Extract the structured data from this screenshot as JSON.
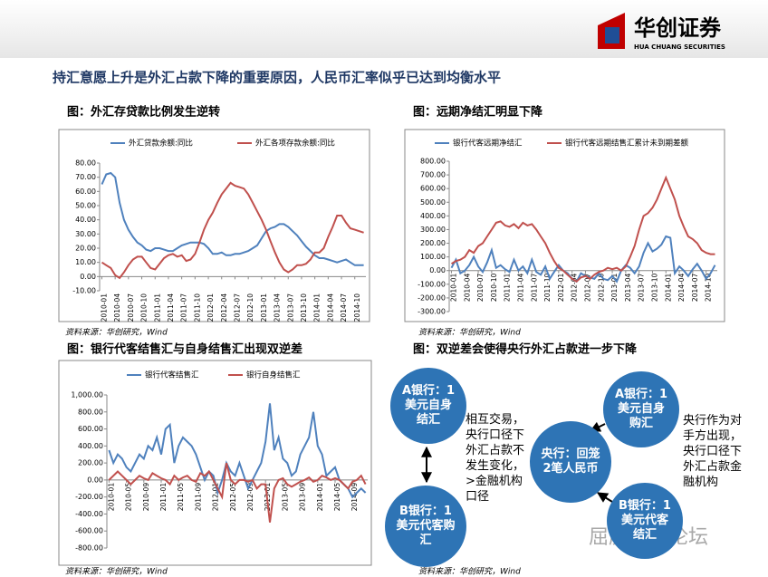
{
  "header": {
    "logo": "华创证券",
    "logo_sub": "HUA CHUANG SECURITIES",
    "headline": "持汇意愿上升是外汇占款下降的重要原因，人民币汇率似乎已达到均衡水平"
  },
  "chart_data": [
    {
      "type": "line",
      "title": "图：外汇存贷款比例发生逆转",
      "source": "资料来源：华创研究，Wind",
      "legend": "top",
      "grid": false,
      "categories": [
        "2010-01",
        null,
        null,
        "2010-04",
        null,
        null,
        "2010-07",
        null,
        null,
        "2010-10",
        null,
        null,
        "2011-01",
        null,
        null,
        "2011-04",
        null,
        null,
        "2011-07",
        null,
        null,
        "2011-10",
        null,
        null,
        "2012-01",
        null,
        null,
        "2012-04",
        null,
        null,
        "2012-07",
        null,
        null,
        "2012-10",
        null,
        null,
        "2013-01",
        null,
        null,
        "2013-04",
        null,
        null,
        "2013-07",
        null,
        null,
        "2013-10",
        null,
        null,
        "2014-01",
        null,
        null,
        "2014-04",
        null,
        null,
        "2014-07",
        null,
        null,
        "2014-10",
        null,
        null
      ],
      "series": [
        {
          "name": "外汇贷款余额:同比",
          "color": "#4f81bd",
          "values": [
            65,
            72,
            73,
            70,
            52,
            40,
            33,
            28,
            24,
            22,
            19,
            18,
            20,
            20,
            19,
            18,
            18,
            20,
            22,
            23,
            24,
            24,
            24,
            23,
            20,
            16,
            16,
            17,
            15,
            15,
            16,
            16,
            17,
            18,
            20,
            22,
            27,
            32,
            34,
            35,
            37,
            37,
            35,
            32,
            29,
            25,
            21,
            18,
            15,
            13,
            13,
            12,
            11,
            10,
            11,
            12,
            10,
            8,
            8,
            8
          ]
        },
        {
          "name": "外汇各项存款余额:同比",
          "color": "#c0504d",
          "values": [
            10,
            8,
            6,
            1,
            -1,
            3,
            8,
            12,
            14,
            14,
            10,
            6,
            5,
            9,
            13,
            15,
            16,
            14,
            15,
            11,
            12,
            16,
            24,
            33,
            40,
            45,
            52,
            58,
            62,
            66,
            64,
            63,
            62,
            58,
            52,
            46,
            40,
            33,
            25,
            17,
            10,
            5,
            3,
            5,
            8,
            8,
            9,
            12,
            17,
            17,
            20,
            28,
            35,
            43,
            43,
            38,
            34,
            33,
            32,
            31
          ]
        }
      ],
      "ylim": [
        -10,
        80
      ],
      "yticks": [
        {
          "value": -10,
          "label": "-10.00"
        },
        {
          "value": 0,
          "label": "0.00"
        },
        {
          "value": 10,
          "label": "10.00"
        },
        {
          "value": 20,
          "label": "20.00"
        },
        {
          "value": 30,
          "label": "30.00"
        },
        {
          "value": 40,
          "label": "40.00"
        },
        {
          "value": 50,
          "label": "50.00"
        },
        {
          "value": 60,
          "label": "60.00"
        },
        {
          "value": 70,
          "label": "70.00"
        },
        {
          "value": 80,
          "label": "80.00"
        }
      ]
    },
    {
      "type": "line",
      "title": "图：远期净结汇明显下降",
      "source": "资料来源：华创研究，Wind",
      "legend": "top",
      "grid": false,
      "categories": [
        "2010-01",
        null,
        null,
        "2010-04",
        null,
        null,
        "2010-07",
        null,
        null,
        "2010-10",
        null,
        null,
        "2011-01",
        null,
        null,
        "2011-04",
        null,
        null,
        "2011-07",
        null,
        null,
        "2011-10",
        null,
        null,
        "2012-01",
        null,
        null,
        "2012-04",
        null,
        null,
        "2012-07",
        null,
        null,
        "2012-10",
        null,
        null,
        "2013-01",
        null,
        null,
        "2013-04",
        null,
        null,
        "2013-07",
        null,
        null,
        "2013-10",
        null,
        null,
        "2014-01",
        null,
        null,
        "2014-04",
        null,
        null,
        "2014-07",
        null,
        null,
        "2014-10",
        null,
        null
      ],
      "series": [
        {
          "name": "银行代客远期净结汇",
          "color": "#4f81bd",
          "values": [
            20,
            80,
            -20,
            0,
            40,
            100,
            30,
            -10,
            60,
            150,
            20,
            40,
            10,
            -10,
            80,
            0,
            30,
            -20,
            80,
            -10,
            -30,
            30,
            -60,
            -10,
            40,
            0,
            -20,
            -60,
            -80,
            -20,
            -40,
            -50,
            -60,
            -20,
            -60,
            -70,
            -40,
            -80,
            0,
            40,
            20,
            -20,
            30,
            130,
            200,
            140,
            160,
            190,
            250,
            240,
            -20,
            30,
            0,
            -40,
            10,
            50,
            0,
            -60,
            -20,
            40
          ]
        },
        {
          "name": "银行代客远期结售汇累计未到期差额",
          "color": "#c0504d",
          "values": [
            50,
            70,
            80,
            100,
            150,
            130,
            180,
            200,
            250,
            300,
            350,
            360,
            330,
            320,
            340,
            310,
            350,
            330,
            340,
            300,
            250,
            200,
            130,
            70,
            20,
            0,
            -30,
            -60,
            -80,
            -50,
            -40,
            -60,
            -30,
            -10,
            0,
            20,
            10,
            20,
            0,
            30,
            100,
            180,
            300,
            400,
            420,
            460,
            520,
            600,
            680,
            600,
            520,
            400,
            320,
            250,
            230,
            200,
            150,
            130,
            120,
            120
          ]
        }
      ],
      "ylim": [
        -300,
        800
      ],
      "yticks": [
        {
          "value": -300,
          "label": "-300.00"
        },
        {
          "value": -200,
          "label": "-200.00"
        },
        {
          "value": -100,
          "label": "-100.00"
        },
        {
          "value": 0,
          "label": "0.00"
        },
        {
          "value": 100,
          "label": "100.00"
        },
        {
          "value": 200,
          "label": "200.00"
        },
        {
          "value": 300,
          "label": "300.00"
        },
        {
          "value": 400,
          "label": "400.00"
        },
        {
          "value": 500,
          "label": "500.00"
        },
        {
          "value": 600,
          "label": "600.00"
        },
        {
          "value": 700,
          "label": "700.00"
        },
        {
          "value": 800,
          "label": "800.00"
        }
      ]
    },
    {
      "type": "line",
      "title": "图：银行代客结售汇与自身结售汇出现双逆差",
      "source": "资料来源：华创研究，Wind",
      "legend": "top",
      "grid": false,
      "categories": [
        "2010-01",
        null,
        null,
        null,
        "2010-05",
        null,
        null,
        null,
        "2010-09",
        null,
        null,
        null,
        "2011-01",
        null,
        null,
        null,
        "2011-05",
        null,
        null,
        null,
        "2011-09",
        null,
        null,
        null,
        "2012-01",
        null,
        null,
        null,
        "2012-05",
        null,
        null,
        null,
        "2012-09",
        null,
        null,
        null,
        "2013-01",
        null,
        null,
        null,
        "2013-05",
        null,
        null,
        null,
        "2013-09",
        null,
        null,
        null,
        "2014-01",
        null,
        null,
        null,
        "2014-05",
        null,
        null,
        null,
        "2014-09",
        null,
        null,
        null
      ],
      "series": [
        {
          "name": "银行代客结售汇",
          "color": "#4f81bd",
          "values": [
            350,
            200,
            300,
            250,
            150,
            100,
            200,
            300,
            250,
            400,
            350,
            500,
            300,
            600,
            650,
            200,
            400,
            500,
            450,
            400,
            300,
            150,
            0,
            100,
            50,
            -150,
            0,
            200,
            100,
            50,
            200,
            50,
            -100,
            0,
            100,
            200,
            450,
            900,
            350,
            500,
            250,
            200,
            50,
            100,
            300,
            400,
            500,
            800,
            400,
            300,
            50,
            100,
            150,
            0,
            -50,
            -100,
            -200,
            -150,
            -100,
            -150
          ]
        },
        {
          "name": "银行自身结售汇",
          "color": "#c0504d",
          "values": [
            0,
            50,
            100,
            50,
            0,
            -50,
            0,
            50,
            20,
            0,
            80,
            50,
            20,
            0,
            -50,
            50,
            0,
            30,
            50,
            0,
            -20,
            80,
            50,
            100,
            0,
            -100,
            -200,
            200,
            0,
            -50,
            0,
            0,
            -20,
            0,
            -100,
            -50,
            -50,
            -500,
            -100,
            0,
            20,
            -50,
            -80,
            -50,
            -20,
            0,
            30,
            -20,
            0,
            50,
            30,
            0,
            20,
            0,
            -50,
            -100,
            -20,
            0,
            50,
            -50
          ]
        }
      ],
      "ylim": [
        -800,
        1000
      ],
      "yticks": [
        {
          "value": -800,
          "label": "-800.00"
        },
        {
          "value": -600,
          "label": "-600.00"
        },
        {
          "value": -400,
          "label": "-400.00"
        },
        {
          "value": -200,
          "label": "-200.00"
        },
        {
          "value": 0,
          "label": "0.00"
        },
        {
          "value": 200,
          "label": "200.00"
        },
        {
          "value": 400,
          "label": "400.00"
        },
        {
          "value": 600,
          "label": "600.00"
        },
        {
          "value": 800,
          "label": "800.00"
        },
        {
          "value": 1000,
          "label": "1,000.00"
        }
      ]
    }
  ],
  "diagram": {
    "title": "图：双逆差会使得央行外汇占款进一步下降",
    "source": "资料来源：华创研究，Wind",
    "nodes": [
      {
        "label": "A银行：1美元自身结汇"
      },
      {
        "label": "B银行：1美元代客购汇"
      },
      {
        "label": "A银行：1美元自身购汇"
      },
      {
        "label": "央行：回笼2笔人民币"
      },
      {
        "label": "B银行：1美元代客结汇"
      }
    ],
    "notes": [
      "相互交易，央行口径下外汇占款不发生变化，>金融机构口径",
      "央行作为对手方出现，央行口径下外汇占款金融机构"
    ]
  },
  "watermark": "屈庆债券论坛"
}
